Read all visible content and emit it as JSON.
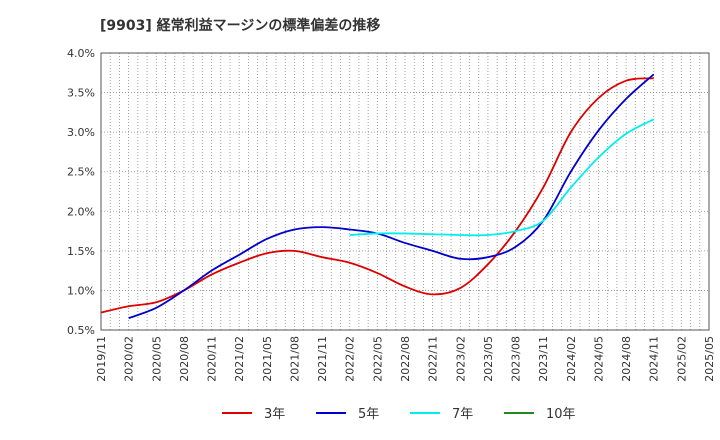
{
  "chart_data": {
    "type": "line",
    "title": "[9903]  経常利益マージンの標準偏差の推移",
    "x_ticks": [
      "2019/11",
      "2020/02",
      "2020/05",
      "2020/08",
      "2020/11",
      "2021/02",
      "2021/05",
      "2021/08",
      "2021/11",
      "2022/02",
      "2022/05",
      "2022/08",
      "2022/11",
      "2023/02",
      "2023/05",
      "2023/08",
      "2023/11",
      "2024/02",
      "2024/05",
      "2024/08",
      "2024/11",
      "2025/02",
      "2025/05"
    ],
    "y_ticks": [
      "0.5%",
      "1.0%",
      "1.5%",
      "2.0%",
      "2.5%",
      "3.0%",
      "3.5%",
      "4.0%"
    ],
    "ylim": [
      0.5,
      4.0
    ],
    "grid": true,
    "legend_position": "bottom",
    "series": [
      {
        "name": "3年",
        "color": "#dd0000",
        "points": [
          [
            "2019/11",
            0.72
          ],
          [
            "2020/02",
            0.8
          ],
          [
            "2020/05",
            0.85
          ],
          [
            "2020/08",
            1.0
          ],
          [
            "2020/11",
            1.2
          ],
          [
            "2021/02",
            1.35
          ],
          [
            "2021/05",
            1.47
          ],
          [
            "2021/08",
            1.5
          ],
          [
            "2021/11",
            1.42
          ],
          [
            "2022/02",
            1.35
          ],
          [
            "2022/05",
            1.22
          ],
          [
            "2022/08",
            1.05
          ],
          [
            "2022/11",
            0.95
          ],
          [
            "2023/02",
            1.03
          ],
          [
            "2023/05",
            1.33
          ],
          [
            "2023/08",
            1.75
          ],
          [
            "2023/11",
            2.3
          ],
          [
            "2024/02",
            3.0
          ],
          [
            "2024/05",
            3.43
          ],
          [
            "2024/08",
            3.65
          ],
          [
            "2024/11",
            3.68
          ]
        ]
      },
      {
        "name": "5年",
        "color": "#0000cc",
        "points": [
          [
            "2020/02",
            0.65
          ],
          [
            "2020/05",
            0.78
          ],
          [
            "2020/08",
            1.0
          ],
          [
            "2020/11",
            1.25
          ],
          [
            "2021/02",
            1.45
          ],
          [
            "2021/05",
            1.65
          ],
          [
            "2021/08",
            1.77
          ],
          [
            "2021/11",
            1.8
          ],
          [
            "2022/02",
            1.77
          ],
          [
            "2022/05",
            1.72
          ],
          [
            "2022/08",
            1.6
          ],
          [
            "2022/11",
            1.5
          ],
          [
            "2023/02",
            1.4
          ],
          [
            "2023/05",
            1.42
          ],
          [
            "2023/08",
            1.55
          ],
          [
            "2023/11",
            1.88
          ],
          [
            "2024/02",
            2.5
          ],
          [
            "2024/05",
            3.02
          ],
          [
            "2024/08",
            3.42
          ],
          [
            "2024/11",
            3.73
          ]
        ]
      },
      {
        "name": "7年",
        "color": "#00eeee",
        "points": [
          [
            "2022/02",
            1.7
          ],
          [
            "2022/05",
            1.72
          ],
          [
            "2022/08",
            1.72
          ],
          [
            "2022/11",
            1.71
          ],
          [
            "2023/02",
            1.7
          ],
          [
            "2023/05",
            1.7
          ],
          [
            "2023/08",
            1.75
          ],
          [
            "2023/11",
            1.88
          ],
          [
            "2024/02",
            2.3
          ],
          [
            "2024/05",
            2.68
          ],
          [
            "2024/08",
            2.98
          ],
          [
            "2024/11",
            3.16
          ]
        ]
      },
      {
        "name": "10年",
        "color": "#228822",
        "points": []
      }
    ]
  }
}
